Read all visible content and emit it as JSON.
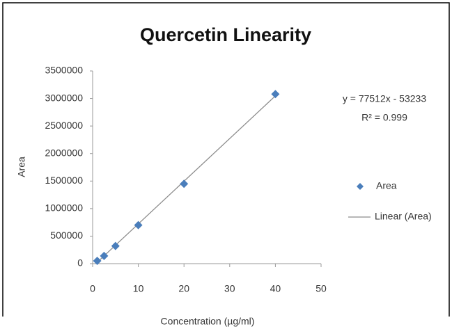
{
  "chart_data": {
    "type": "scatter",
    "title": "Quercetin Linearity",
    "x_label": "Concentration (µg/ml)",
    "y_label": "Area",
    "series": [
      {
        "name": "Area",
        "color": "#4a7ebb",
        "x": [
          1,
          2.5,
          5,
          10,
          20,
          40
        ],
        "values": [
          50000,
          140000,
          320000,
          700000,
          1450000,
          3080000
        ]
      }
    ],
    "trendline": {
      "name": "Linear (Area)",
      "color": "#8c8c8c",
      "x": [
        1,
        40
      ],
      "values": [
        24279,
        3047247
      ]
    },
    "annotations": [
      "y = 77512x - 53233",
      "R² = 0.999"
    ],
    "xlim": [
      0,
      50
    ],
    "xticks": [
      0,
      10,
      20,
      30,
      40,
      50
    ],
    "ylim": [
      0,
      3500000
    ],
    "yticks": [
      0,
      500000,
      1000000,
      1500000,
      2000000,
      2500000,
      3000000,
      3500000
    ],
    "grid": false,
    "legend": "right"
  }
}
